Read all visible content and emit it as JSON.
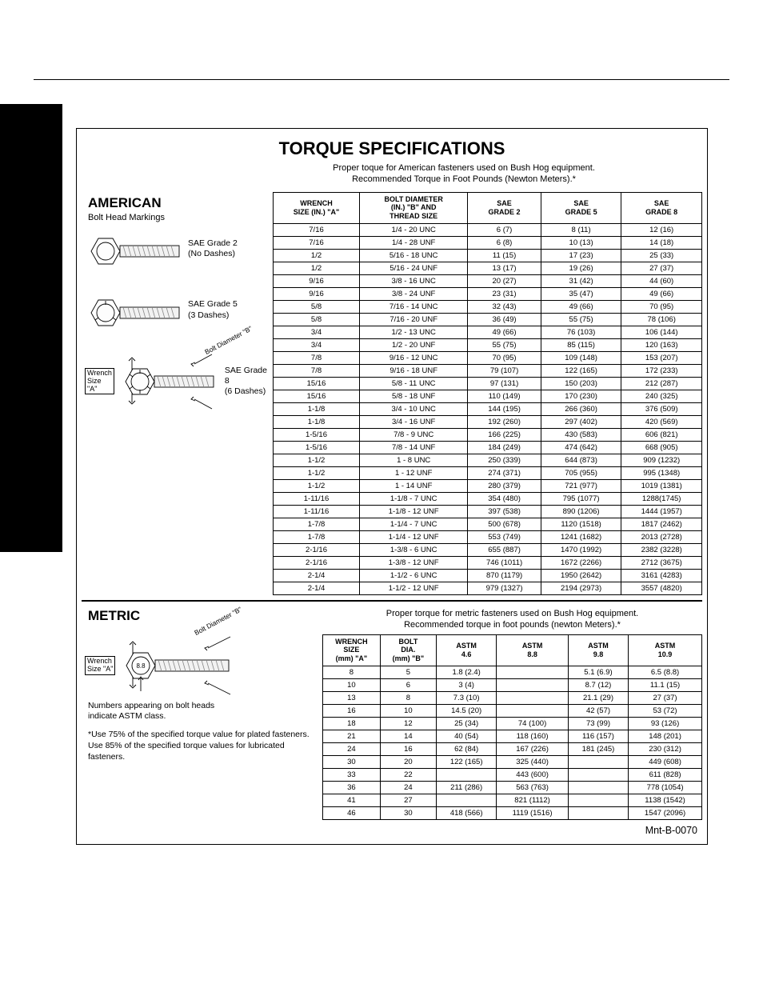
{
  "title": "TORQUE SPECIFICATIONS",
  "subtitle": "Proper toque for American fasteners used on Bush Hog equipment.\nRecommended Torque in Foot Pounds (Newton Meters).*",
  "american": {
    "heading": "AMERICAN",
    "subheading": "Bolt Head Markings",
    "grade2": "SAE Grade 2\n(No Dashes)",
    "grade5": "SAE Grade 5\n(3 Dashes)",
    "grade8": "SAE Grade 8\n(6 Dashes)",
    "boltDia": "Bolt Diameter \"B\"",
    "wrenchSize": "Wrench\nSize \"A\"",
    "headers": [
      "WRENCH\nSIZE (IN.) \"A\"",
      "BOLT DIAMETER\n(IN.) \"B\" AND\nTHREAD SIZE",
      "SAE\nGRADE 2",
      "SAE\nGRADE 5",
      "SAE\nGRADE 8"
    ],
    "rows": [
      [
        "7/16",
        "1/4 - 20 UNC",
        "6 (7)",
        "8 (11)",
        "12 (16)"
      ],
      [
        "7/16",
        "1/4 - 28 UNF",
        "6 (8)",
        "10 (13)",
        "14 (18)"
      ],
      [
        "1/2",
        "5/16 - 18 UNC",
        "11 (15)",
        "17 (23)",
        "25 (33)"
      ],
      [
        "1/2",
        "5/16 - 24 UNF",
        "13 (17)",
        "19 (26)",
        "27 (37)"
      ],
      [
        "9/16",
        "3/8 - 16 UNC",
        "20 (27)",
        "31 (42)",
        "44 (60)"
      ],
      [
        "9/16",
        "3/8 - 24 UNF",
        "23 (31)",
        "35 (47)",
        "49 (66)"
      ],
      [
        "5/8",
        "7/16 - 14 UNC",
        "32 (43)",
        "49 (66)",
        "70 (95)"
      ],
      [
        "5/8",
        "7/16 - 20 UNF",
        "36 (49)",
        "55 (75)",
        "78 (106)"
      ],
      [
        "3/4",
        "1/2 - 13 UNC",
        "49 (66)",
        "76 (103)",
        "106 (144)"
      ],
      [
        "3/4",
        "1/2 - 20 UNF",
        "55 (75)",
        "85 (115)",
        "120 (163)"
      ],
      [
        "7/8",
        "9/16 - 12 UNC",
        "70 (95)",
        "109 (148)",
        "153 (207)"
      ],
      [
        "7/8",
        "9/16 - 18 UNF",
        "79 (107)",
        "122 (165)",
        "172 (233)"
      ],
      [
        "15/16",
        "5/8 - 11 UNC",
        "97 (131)",
        "150 (203)",
        "212 (287)"
      ],
      [
        "15/16",
        "5/8 - 18 UNF",
        "110 (149)",
        "170 (230)",
        "240 (325)"
      ],
      [
        "1-1/8",
        "3/4 - 10 UNC",
        "144 (195)",
        "266 (360)",
        "376 (509)"
      ],
      [
        "1-1/8",
        "3/4 - 16 UNF",
        "192 (260)",
        "297 (402)",
        "420 (569)"
      ],
      [
        "1-5/16",
        "7/8 - 9 UNC",
        "166 (225)",
        "430 (583)",
        "606 (821)"
      ],
      [
        "1-5/16",
        "7/8 - 14 UNF",
        "184 (249)",
        "474 (642)",
        "668 (905)"
      ],
      [
        "1-1/2",
        "1 - 8 UNC",
        "250 (339)",
        "644 (873)",
        "909 (1232)"
      ],
      [
        "1-1/2",
        "1 - 12 UNF",
        "274 (371)",
        "705 (955)",
        "995 (1348)"
      ],
      [
        "1-1/2",
        "1 - 14 UNF",
        "280 (379)",
        "721 (977)",
        "1019 (1381)"
      ],
      [
        "1-11/16",
        "1-1/8 - 7 UNC",
        "354 (480)",
        "795 (1077)",
        "1288(1745)"
      ],
      [
        "1-11/16",
        "1-1/8 - 12 UNF",
        "397 (538)",
        "890 (1206)",
        "1444 (1957)"
      ],
      [
        "1-7/8",
        "1-1/4 - 7 UNC",
        "500 (678)",
        "1120 (1518)",
        "1817 (2462)"
      ],
      [
        "1-7/8",
        "1-1/4 - 12 UNF",
        "553 (749)",
        "1241 (1682)",
        "2013 (2728)"
      ],
      [
        "2-1/16",
        "1-3/8 - 6 UNC",
        "655 (887)",
        "1470 (1992)",
        "2382 (3228)"
      ],
      [
        "2-1/16",
        "1-3/8 - 12 UNF",
        "746 (1011)",
        "1672 (2266)",
        "2712 (3675)"
      ],
      [
        "2-1/4",
        "1-1/2 - 6 UNC",
        "870 (1179)",
        "1950 (2642)",
        "3161 (4283)"
      ],
      [
        "2-1/4",
        "1-1/2 - 12 UNF",
        "979 (1327)",
        "2194 (2973)",
        "3557 (4820)"
      ]
    ]
  },
  "metric": {
    "heading": "METRIC",
    "boltDia": "Bolt Diameter \"B\"",
    "wrenchSize": "Wrench\nSize \"A\"",
    "headMark": "8.8",
    "astmNote": "Numbers appearing on bolt heads\nindicate ASTM class.",
    "footnote": "*Use 75% of the specified torque value for plated fasteners.  Use 85% of the specified torque values for lubricated fasteners.",
    "subtitle": "Proper torque for metric fasteners used on Bush Hog equipment.\nRecommended torque in foot pounds (newton Meters).*",
    "headers": [
      "WRENCH\nSIZE\n(mm) \"A\"",
      "BOLT\nDIA.\n(mm) \"B\"",
      "ASTM\n4.6",
      "ASTM\n8.8",
      "ASTM\n9.8",
      "ASTM\n10.9"
    ],
    "rows": [
      [
        "8",
        "5",
        "1.8 (2.4)",
        "",
        "5.1 (6.9)",
        "6.5 (8.8)"
      ],
      [
        "10",
        "6",
        "3 (4)",
        "",
        "8.7 (12)",
        "11.1 (15)"
      ],
      [
        "13",
        "8",
        "7.3 (10)",
        "",
        "21.1 (29)",
        "27 (37)"
      ],
      [
        "16",
        "10",
        "14.5 (20)",
        "",
        "42 (57)",
        "53 (72)"
      ],
      [
        "18",
        "12",
        "25 (34)",
        "74 (100)",
        "73 (99)",
        "93 (126)"
      ],
      [
        "21",
        "14",
        "40 (54)",
        "118 (160)",
        "116 (157)",
        "148 (201)"
      ],
      [
        "24",
        "16",
        "62 (84)",
        "167 (226)",
        "181 (245)",
        "230 (312)"
      ],
      [
        "30",
        "20",
        "122 (165)",
        "325 (440)",
        "",
        "449 (608)"
      ],
      [
        "33",
        "22",
        "",
        "443 (600)",
        "",
        "611 (828)"
      ],
      [
        "36",
        "24",
        "211 (286)",
        "563 (763)",
        "",
        "778 (1054)"
      ],
      [
        "41",
        "27",
        "",
        "821 (1112)",
        "",
        "1138 (1542)"
      ],
      [
        "46",
        "30",
        "418 (566)",
        "1119 (1516)",
        "",
        "1547 (2096)"
      ]
    ]
  },
  "mnt": "Mnt-B-0070"
}
